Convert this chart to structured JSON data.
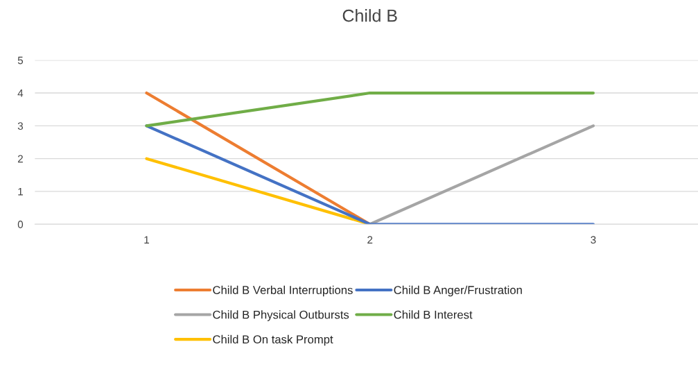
{
  "chart_data": {
    "type": "line",
    "title": "Child B",
    "categories": [
      "1",
      "2",
      "3"
    ],
    "series": [
      {
        "name": "Child B Verbal Interruptions",
        "color": "#ed7d31",
        "values": [
          4,
          0,
          null
        ]
      },
      {
        "name": "Child B Physical Outbursts",
        "color": "#a5a5a5",
        "values": [
          null,
          0,
          3
        ]
      },
      {
        "name": "Child B On task Prompt",
        "color": "#ffc000",
        "values": [
          2,
          0,
          null
        ]
      },
      {
        "name": "Child B Anger/Frustration",
        "color": "#4472c4",
        "values": [
          3,
          0,
          0
        ]
      },
      {
        "name": "Child B Interest",
        "color": "#70ad47",
        "values": [
          3,
          4,
          4
        ]
      }
    ],
    "ylim": [
      0,
      5
    ],
    "yticks": [
      0,
      1,
      2,
      3,
      4,
      5
    ],
    "grid": "y",
    "legend": "bottom",
    "marker": "none",
    "line_style": "solid"
  }
}
